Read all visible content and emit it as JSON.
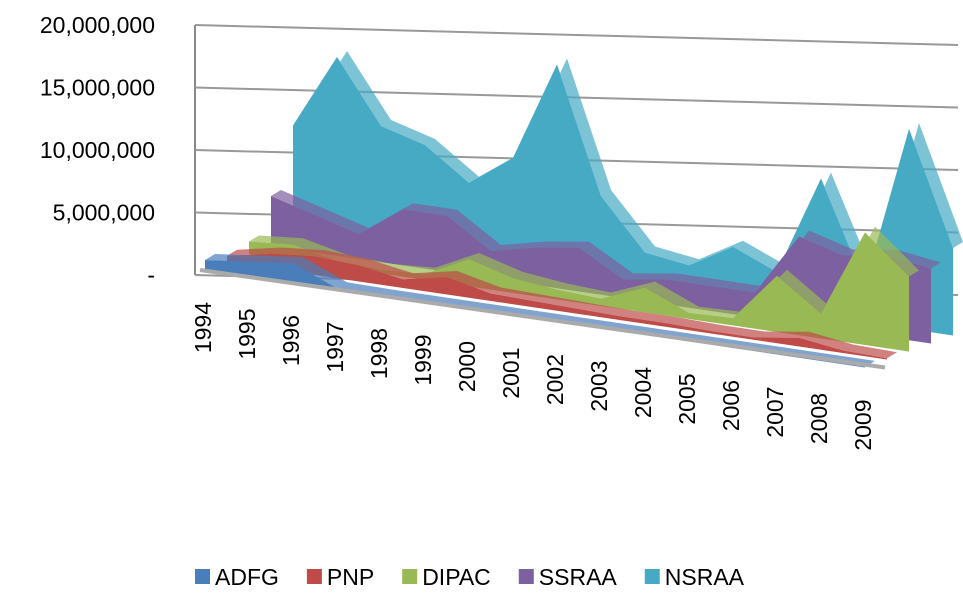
{
  "chart_data": {
    "type": "area3d",
    "categories": [
      "1994",
      "1995",
      "1996",
      "1997",
      "1998",
      "1999",
      "2000",
      "2001",
      "2002",
      "2003",
      "2004",
      "2005",
      "2006",
      "2007",
      "2008",
      "2009"
    ],
    "series": [
      {
        "name": "ADFG",
        "color": "#4a7ebb",
        "values": [
          800000,
          1200000,
          1600000,
          100000,
          50000,
          50000,
          50000,
          50000,
          50000,
          50000,
          50000,
          50000,
          50000,
          50000,
          50000,
          50000
        ]
      },
      {
        "name": "PNP",
        "color": "#be4b48",
        "values": [
          500000,
          1200000,
          1500000,
          1300000,
          700000,
          1400000,
          600000,
          500000,
          400000,
          300000,
          300000,
          200000,
          200000,
          700000,
          200000,
          100000
        ]
      },
      {
        "name": "DIPAC",
        "color": "#98b954",
        "values": [
          1000000,
          1300000,
          500000,
          300000,
          500000,
          2200000,
          1200000,
          800000,
          600000,
          2000000,
          500000,
          600000,
          4500000,
          2000000,
          9000000,
          6000000
        ]
      },
      {
        "name": "SSRAA",
        "color": "#7d60a0",
        "values": [
          4000000,
          3000000,
          2000000,
          4500000,
          4500000,
          2200000,
          3000000,
          3500000,
          1500000,
          2000000,
          2000000,
          2000000,
          7000000,
          6000000,
          6500000,
          6000000
        ]
      },
      {
        "name": "NSRAA",
        "color": "#46aac5",
        "values": [
          9000000,
          15000000,
          10000000,
          9000000,
          6500000,
          9000000,
          17000000,
          7000000,
          3000000,
          2500000,
          4500000,
          3000000,
          11000000,
          3000000,
          16000000,
          7000000
        ]
      }
    ],
    "ylim": [
      0,
      20000000
    ],
    "yticks": [
      {
        "value": 0,
        "label": "-"
      },
      {
        "value": 5000000,
        "label": "5,000,000"
      },
      {
        "value": 10000000,
        "label": "10,000,000"
      },
      {
        "value": 15000000,
        "label": "15,000,000"
      },
      {
        "value": 20000000,
        "label": "20,000,000"
      }
    ],
    "grid": true,
    "legend": "bottom"
  }
}
